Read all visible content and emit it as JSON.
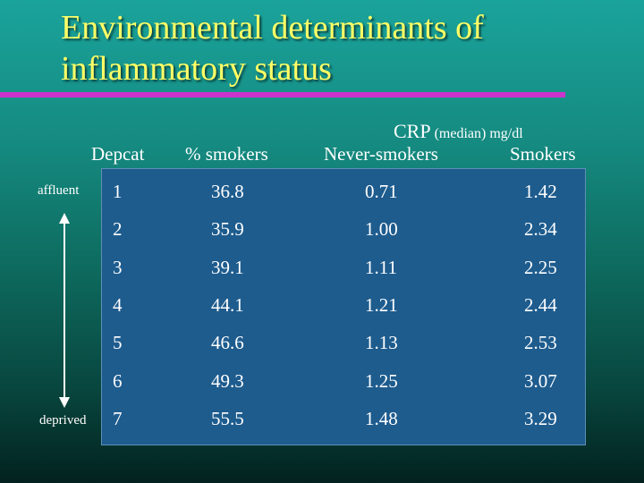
{
  "slide": {
    "title_line1": "Environmental determinants of",
    "title_line2": "inflammatory status",
    "crp_label": "CRP",
    "crp_unit": "(median) mg/dl",
    "label_top": "affluent",
    "label_bottom": "deprived"
  },
  "table": {
    "headers": [
      "Depcat",
      "% smokers",
      "Never-smokers",
      "Smokers"
    ],
    "rows": [
      [
        "1",
        "36.8",
        "0.71",
        "1.42"
      ],
      [
        "2",
        "35.9",
        "1.00",
        "2.34"
      ],
      [
        "3",
        "39.1",
        "1.11",
        "2.25"
      ],
      [
        "4",
        "44.1",
        "1.21",
        "2.44"
      ],
      [
        "5",
        "46.6",
        "1.13",
        "2.53"
      ],
      [
        "6",
        "49.3",
        "1.25",
        "3.07"
      ],
      [
        "7",
        "55.5",
        "1.48",
        "3.29"
      ]
    ]
  },
  "colors": {
    "title": "#ffff66",
    "rule": "#cc33cc",
    "table_bg": "#1e5c8e"
  }
}
